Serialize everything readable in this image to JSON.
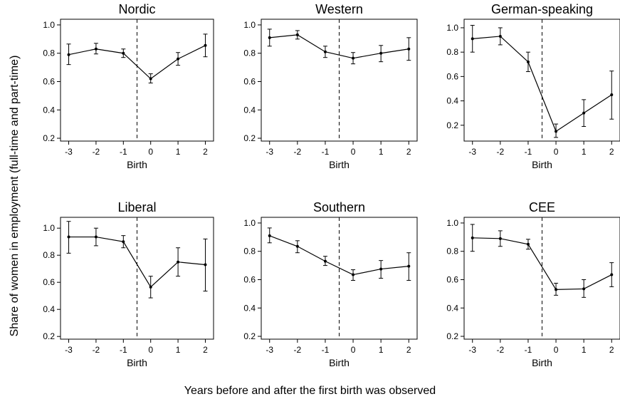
{
  "figure": {
    "y_label": "Share of women in employment (full-time and part-time)",
    "x_caption": "Years before and after the first birth was observed"
  },
  "chart_data": [
    {
      "type": "line",
      "title": "Nordic",
      "xlabel": "Birth",
      "x": [
        -3,
        -2,
        -1,
        0,
        1,
        2
      ],
      "xticks": [
        "-3",
        "-2",
        "-1",
        "0",
        "1",
        "2"
      ],
      "y": [
        0.79,
        0.83,
        0.8,
        0.62,
        0.76,
        0.855
      ],
      "ci_low": [
        0.72,
        0.795,
        0.77,
        0.59,
        0.715,
        0.775
      ],
      "ci_high": [
        0.865,
        0.87,
        0.83,
        0.655,
        0.805,
        0.935
      ],
      "ylim": [
        0.18,
        1.04
      ],
      "yticks": [
        0.2,
        0.4,
        0.6,
        0.8,
        1.0
      ],
      "ytick_labels": [
        "0.2",
        "0.4",
        "0.6",
        "0.8",
        "1.0"
      ],
      "birth_line": -0.5
    },
    {
      "type": "line",
      "title": "Western",
      "xlabel": "Birth",
      "x": [
        -3,
        -2,
        -1,
        0,
        1,
        2
      ],
      "xticks": [
        "-3",
        "-2",
        "-1",
        "0",
        "1",
        "2"
      ],
      "y": [
        0.91,
        0.93,
        0.81,
        0.765,
        0.8,
        0.83
      ],
      "ci_low": [
        0.85,
        0.9,
        0.77,
        0.725,
        0.74,
        0.75
      ],
      "ci_high": [
        0.97,
        0.96,
        0.85,
        0.805,
        0.855,
        0.91
      ],
      "ylim": [
        0.18,
        1.04
      ],
      "yticks": [
        0.2,
        0.4,
        0.6,
        0.8,
        1.0
      ],
      "ytick_labels": [
        "0.2",
        "0.4",
        "0.6",
        "0.8",
        "1.0"
      ],
      "birth_line": -0.5
    },
    {
      "type": "line",
      "title": "German-speaking",
      "xlabel": "Birth",
      "x": [
        -3,
        -2,
        -1,
        0,
        1,
        2
      ],
      "xticks": [
        "-3",
        "-2",
        "-1",
        "0",
        "1",
        "2"
      ],
      "y": [
        0.91,
        0.93,
        0.72,
        0.15,
        0.3,
        0.45
      ],
      "ci_low": [
        0.8,
        0.86,
        0.64,
        0.1,
        0.19,
        0.25
      ],
      "ci_high": [
        1.02,
        1.0,
        0.8,
        0.21,
        0.41,
        0.645
      ],
      "ylim": [
        0.07,
        1.07
      ],
      "yticks": [
        0.2,
        0.4,
        0.6,
        0.8,
        1.0
      ],
      "ytick_labels": [
        "0.2",
        "0.4",
        "0.6",
        "0.8",
        "1.0"
      ],
      "birth_line": -0.5
    },
    {
      "type": "line",
      "title": "Liberal",
      "xlabel": "Birth",
      "x": [
        -3,
        -2,
        -1,
        0,
        1,
        2
      ],
      "xticks": [
        "-3",
        "-2",
        "-1",
        "0",
        "1",
        "2"
      ],
      "y": [
        0.935,
        0.935,
        0.9,
        0.565,
        0.75,
        0.73
      ],
      "ci_low": [
        0.815,
        0.87,
        0.855,
        0.485,
        0.645,
        0.535
      ],
      "ci_high": [
        1.05,
        1.0,
        0.945,
        0.645,
        0.855,
        0.92
      ],
      "ylim": [
        0.18,
        1.08
      ],
      "yticks": [
        0.2,
        0.4,
        0.6,
        0.8,
        1.0
      ],
      "ytick_labels": [
        "0.2",
        "0.4",
        "0.6",
        "0.8",
        "1.0"
      ],
      "birth_line": -0.5
    },
    {
      "type": "line",
      "title": "Southern",
      "xlabel": "Birth",
      "x": [
        -3,
        -2,
        -1,
        0,
        1,
        2
      ],
      "xticks": [
        "-3",
        "-2",
        "-1",
        "0",
        "1",
        "2"
      ],
      "y": [
        0.91,
        0.835,
        0.73,
        0.635,
        0.675,
        0.695
      ],
      "ci_low": [
        0.86,
        0.79,
        0.7,
        0.595,
        0.61,
        0.595
      ],
      "ci_high": [
        0.965,
        0.875,
        0.765,
        0.67,
        0.735,
        0.79
      ],
      "ylim": [
        0.18,
        1.04
      ],
      "yticks": [
        0.2,
        0.4,
        0.6,
        0.8,
        1.0
      ],
      "ytick_labels": [
        "0.2",
        "0.4",
        "0.6",
        "0.8",
        "1.0"
      ],
      "birth_line": -0.5
    },
    {
      "type": "line",
      "title": "CEE",
      "xlabel": "Birth",
      "x": [
        -3,
        -2,
        -1,
        0,
        1,
        2
      ],
      "xticks": [
        "-3",
        "-2",
        "-1",
        "0",
        "1",
        "2"
      ],
      "y": [
        0.895,
        0.89,
        0.85,
        0.53,
        0.535,
        0.635
      ],
      "ci_low": [
        0.8,
        0.835,
        0.815,
        0.49,
        0.475,
        0.55
      ],
      "ci_high": [
        0.99,
        0.945,
        0.885,
        0.575,
        0.6,
        0.72
      ],
      "ylim": [
        0.18,
        1.04
      ],
      "yticks": [
        0.2,
        0.4,
        0.6,
        0.8,
        1.0
      ],
      "ytick_labels": [
        "0.2",
        "0.4",
        "0.6",
        "0.8",
        "1.0"
      ],
      "birth_line": -0.5
    }
  ]
}
